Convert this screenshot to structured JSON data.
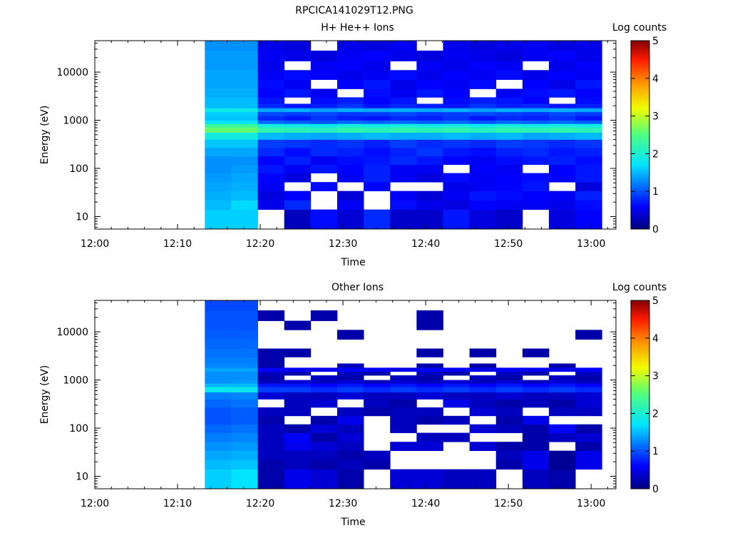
{
  "figure": {
    "title": "RPCICA141029T12.PNG"
  },
  "chart_data": [
    {
      "type": "heatmap",
      "title": "H+ He++ Ions",
      "xlabel": "Time",
      "ylabel": "Energy (eV)",
      "x_unit": "minutes past 12:00",
      "x_range": [
        0,
        63
      ],
      "x_ticks": [
        "12:00",
        "12:10",
        "12:20",
        "12:30",
        "12:40",
        "12:50",
        "13:00"
      ],
      "y_scale": "log",
      "y_range": [
        5.5,
        45000
      ],
      "y_ticks": [
        "10",
        "100",
        "1000",
        "10000"
      ],
      "colorbar": {
        "label": "Log counts",
        "range": [
          0,
          5
        ],
        "ticks": [
          "0",
          "1",
          "2",
          "3",
          "4",
          "5"
        ],
        "colormap": "rainbow"
      },
      "time_bins_min": [
        [
          13.3,
          16.5
        ],
        [
          16.5,
          19.7
        ],
        [
          19.7,
          22.9
        ],
        [
          22.9,
          26.1
        ],
        [
          26.1,
          29.3
        ],
        [
          29.3,
          32.5
        ],
        [
          32.5,
          35.7
        ],
        [
          35.7,
          38.9
        ],
        [
          38.9,
          42.1
        ],
        [
          42.1,
          45.3
        ],
        [
          45.3,
          48.5
        ],
        [
          48.5,
          51.7
        ],
        [
          51.7,
          54.9
        ],
        [
          54.9,
          58.1
        ],
        [
          58.1,
          61.3
        ]
      ],
      "energy_bins_eV": [
        5.5,
        9,
        14,
        22,
        34,
        52,
        80,
        120,
        180,
        270,
        400,
        560,
        720,
        850,
        1000,
        1250,
        1500,
        1800,
        2200,
        3000,
        4500,
        7000,
        11000,
        17000,
        28000,
        45000
      ],
      "log_counts": [
        [
          1.6,
          1.6,
          null,
          0.3,
          0.65,
          0.4,
          0.8,
          0.35,
          0.35,
          0.7,
          0.45,
          0.35,
          null,
          0.45,
          0.6
        ],
        [
          1.6,
          1.6,
          null,
          0.3,
          0.65,
          0.4,
          0.8,
          0.35,
          0.35,
          0.7,
          0.45,
          0.35,
          null,
          0.45,
          0.6
        ],
        [
          1.5,
          1.65,
          0.5,
          0.8,
          null,
          0.55,
          null,
          0.65,
          0.5,
          0.45,
          0.6,
          0.55,
          0.55,
          0.5,
          0.65
        ],
        [
          1.45,
          1.5,
          0.45,
          0.6,
          null,
          0.4,
          null,
          0.55,
          0.4,
          0.55,
          0.7,
          0.65,
          0.6,
          0.55,
          0.75
        ],
        [
          1.4,
          1.45,
          0.55,
          null,
          0.65,
          null,
          0.6,
          null,
          null,
          0.5,
          0.55,
          0.6,
          0.7,
          null,
          0.45
        ],
        [
          1.35,
          1.4,
          0.6,
          0.45,
          null,
          0.55,
          0.75,
          0.55,
          0.45,
          0.65,
          0.55,
          0.6,
          0.65,
          0.6,
          0.7
        ],
        [
          1.3,
          1.35,
          0.7,
          0.55,
          0.7,
          0.6,
          0.75,
          0.55,
          0.55,
          null,
          0.6,
          0.55,
          null,
          0.6,
          0.7
        ],
        [
          1.3,
          1.3,
          0.6,
          0.75,
          0.55,
          0.65,
          0.7,
          0.8,
          0.7,
          0.6,
          0.55,
          0.65,
          0.7,
          0.75,
          0.65
        ],
        [
          1.4,
          1.4,
          0.8,
          0.65,
          0.8,
          0.75,
          0.65,
          0.75,
          0.85,
          0.7,
          0.65,
          0.75,
          0.8,
          0.7,
          0.75
        ],
        [
          1.55,
          1.55,
          0.9,
          0.85,
          0.8,
          0.85,
          0.75,
          0.9,
          0.8,
          0.85,
          0.8,
          0.9,
          0.85,
          0.8,
          0.85
        ],
        [
          1.9,
          1.9,
          1.5,
          1.45,
          1.4,
          1.45,
          1.5,
          1.45,
          1.45,
          1.5,
          1.45,
          1.5,
          1.4,
          1.45,
          1.5
        ],
        [
          2.6,
          2.6,
          2.2,
          2.15,
          2.1,
          2.2,
          2.15,
          2.2,
          2.15,
          2.2,
          2.1,
          2.2,
          2.15,
          2.2,
          2.15
        ],
        [
          2.3,
          2.3,
          1.9,
          1.85,
          1.8,
          1.9,
          1.85,
          1.9,
          1.85,
          1.9,
          1.8,
          1.9,
          1.85,
          1.9,
          1.85
        ],
        [
          1.7,
          1.7,
          1.1,
          1.05,
          1.0,
          1.1,
          1.05,
          1.1,
          1.05,
          1.1,
          1.0,
          1.1,
          1.05,
          1.1,
          1.05
        ],
        [
          1.55,
          1.55,
          0.8,
          0.7,
          0.85,
          0.75,
          0.7,
          0.8,
          0.75,
          0.85,
          0.7,
          0.8,
          0.75,
          0.85,
          0.7
        ],
        [
          1.6,
          1.6,
          0.95,
          0.9,
          0.95,
          0.85,
          0.9,
          0.95,
          0.85,
          0.9,
          0.95,
          0.9,
          0.85,
          0.95,
          0.9
        ],
        [
          1.85,
          1.85,
          1.4,
          1.45,
          1.35,
          1.45,
          1.4,
          1.45,
          1.4,
          1.45,
          1.35,
          1.45,
          1.4,
          1.45,
          1.4
        ],
        [
          1.5,
          1.5,
          0.8,
          0.7,
          0.75,
          0.85,
          0.7,
          0.8,
          0.75,
          0.7,
          0.85,
          0.75,
          0.8,
          0.7,
          0.75
        ],
        [
          1.5,
          1.5,
          0.7,
          null,
          0.65,
          0.75,
          0.6,
          0.7,
          null,
          0.65,
          0.75,
          0.7,
          0.6,
          null,
          0.65
        ],
        [
          1.45,
          1.45,
          0.6,
          0.7,
          0.55,
          null,
          0.65,
          0.55,
          0.7,
          0.6,
          null,
          0.55,
          0.65,
          0.7,
          0.6
        ],
        [
          1.4,
          1.4,
          0.65,
          0.55,
          null,
          0.6,
          0.7,
          0.5,
          0.6,
          0.55,
          0.65,
          null,
          0.6,
          0.5,
          0.7
        ],
        [
          1.4,
          1.4,
          0.55,
          0.65,
          0.6,
          0.5,
          0.55,
          0.65,
          0.5,
          0.6,
          0.55,
          0.65,
          0.5,
          0.6,
          0.55
        ],
        [
          1.35,
          1.35,
          0.5,
          null,
          0.55,
          0.6,
          0.5,
          null,
          0.55,
          0.5,
          0.6,
          0.55,
          null,
          0.5,
          0.6
        ],
        [
          1.35,
          1.35,
          0.55,
          0.5,
          0.45,
          0.55,
          0.6,
          0.5,
          0.45,
          0.55,
          0.5,
          0.45,
          0.55,
          0.6,
          0.5
        ],
        [
          1.3,
          1.3,
          0.5,
          0.45,
          null,
          0.5,
          0.45,
          0.55,
          null,
          0.5,
          0.45,
          0.5,
          0.55,
          0.45,
          0.5
        ]
      ]
    },
    {
      "type": "heatmap",
      "title": "Other Ions",
      "xlabel": "Time",
      "ylabel": "Energy (eV)",
      "x_unit": "minutes past 12:00",
      "x_range": [
        0,
        63
      ],
      "x_ticks": [
        "12:00",
        "12:10",
        "12:20",
        "12:30",
        "12:40",
        "12:50",
        "13:00"
      ],
      "y_scale": "log",
      "y_range": [
        5.5,
        45000
      ],
      "y_ticks": [
        "10",
        "100",
        "1000",
        "10000"
      ],
      "colorbar": {
        "label": "Log counts",
        "range": [
          0,
          5
        ],
        "ticks": [
          "0",
          "1",
          "2",
          "3",
          "4",
          "5"
        ],
        "colormap": "rainbow"
      },
      "time_bins_min": [
        [
          13.3,
          16.5
        ],
        [
          16.5,
          19.7
        ],
        [
          19.7,
          22.9
        ],
        [
          22.9,
          26.1
        ],
        [
          26.1,
          29.3
        ],
        [
          29.3,
          32.5
        ],
        [
          32.5,
          35.7
        ],
        [
          35.7,
          38.9
        ],
        [
          38.9,
          42.1
        ],
        [
          42.1,
          45.3
        ],
        [
          45.3,
          48.5
        ],
        [
          48.5,
          51.7
        ],
        [
          51.7,
          54.9
        ],
        [
          54.9,
          58.1
        ],
        [
          58.1,
          61.3
        ]
      ],
      "energy_bins_eV": [
        5.5,
        9,
        14,
        22,
        34,
        52,
        80,
        120,
        180,
        270,
        400,
        560,
        720,
        850,
        1000,
        1250,
        1500,
        1800,
        2200,
        3000,
        4500,
        7000,
        11000,
        17000,
        28000,
        45000
      ],
      "log_counts": [
        [
          1.6,
          1.7,
          0.2,
          0.5,
          0.4,
          0.2,
          null,
          0.4,
          0.4,
          0.3,
          0.3,
          null,
          0.3,
          0.2,
          null
        ],
        [
          1.6,
          1.7,
          0.2,
          0.5,
          0.4,
          0.2,
          null,
          0.4,
          0.4,
          0.3,
          0.3,
          null,
          0.3,
          0.2,
          null
        ],
        [
          1.5,
          1.55,
          0.2,
          0.3,
          0.2,
          0.3,
          0.2,
          null,
          null,
          null,
          null,
          0.2,
          0.5,
          0.1,
          0.5
        ],
        [
          1.4,
          1.45,
          0.3,
          0.3,
          0.3,
          0.2,
          0.3,
          null,
          null,
          null,
          null,
          0.3,
          0.5,
          0.1,
          0.5
        ],
        [
          1.3,
          1.35,
          0.3,
          0.5,
          0.4,
          0.3,
          null,
          0.4,
          0.4,
          null,
          0.4,
          0.2,
          0.2,
          null,
          0.2
        ],
        [
          1.2,
          1.25,
          0.3,
          0.6,
          0.2,
          0.4,
          null,
          null,
          0.3,
          0.3,
          null,
          null,
          0.2,
          0.3,
          0.4
        ],
        [
          1.1,
          1.15,
          0.3,
          0.2,
          0.4,
          0.3,
          null,
          0.3,
          null,
          null,
          0.4,
          0.3,
          0.2,
          0.6,
          0.2
        ],
        [
          1.0,
          1.05,
          0.2,
          null,
          0.2,
          0.5,
          null,
          0.3,
          0.2,
          0.3,
          null,
          0.2,
          0.5,
          null,
          null
        ],
        [
          1.0,
          1.05,
          0.3,
          0.3,
          null,
          0.3,
          0.2,
          0.3,
          0.3,
          null,
          0.4,
          0.3,
          null,
          0.3,
          0.3
        ],
        [
          1.1,
          1.15,
          null,
          0.3,
          0.4,
          null,
          0.3,
          0.2,
          null,
          0.5,
          0.3,
          0.2,
          0.3,
          0.2,
          0.4
        ],
        [
          1.2,
          1.25,
          0.4,
          0.3,
          0.3,
          0.4,
          0.3,
          0.3,
          0.4,
          0.3,
          0.3,
          0.4,
          0.3,
          0.3,
          0.4
        ],
        [
          1.8,
          1.8,
          0.9,
          0.9,
          0.8,
          0.9,
          0.8,
          0.9,
          0.8,
          0.9,
          0.8,
          0.9,
          0.8,
          0.9,
          0.8
        ],
        [
          1.5,
          1.5,
          0.7,
          0.7,
          0.6,
          0.7,
          0.6,
          0.7,
          0.6,
          0.7,
          0.6,
          0.7,
          0.6,
          0.7,
          0.6
        ],
        [
          1.3,
          1.35,
          0.3,
          0.4,
          0.3,
          0.4,
          0.3,
          0.4,
          0.3,
          0.4,
          0.3,
          0.4,
          0.3,
          0.4,
          0.3
        ],
        [
          1.3,
          1.3,
          0.2,
          null,
          0.3,
          0.2,
          null,
          0.3,
          0.2,
          null,
          0.3,
          0.2,
          null,
          0.3,
          0.2
        ],
        [
          1.3,
          1.3,
          0.3,
          0.2,
          null,
          0.3,
          0.2,
          null,
          0.3,
          0.2,
          null,
          0.3,
          0.2,
          null,
          0.3
        ],
        [
          1.4,
          1.4,
          0.6,
          0.6,
          0.5,
          0.6,
          0.6,
          0.5,
          0.6,
          0.6,
          0.5,
          0.6,
          0.6,
          0.5,
          0.6
        ],
        [
          1.25,
          1.25,
          0.2,
          null,
          null,
          0.3,
          null,
          null,
          0.2,
          null,
          0.2,
          null,
          null,
          0.2,
          null
        ],
        [
          1.2,
          1.2,
          0.2,
          null,
          null,
          null,
          null,
          null,
          null,
          null,
          null,
          null,
          null,
          null,
          null
        ],
        [
          1.15,
          1.15,
          0.2,
          0.2,
          null,
          null,
          null,
          null,
          0.2,
          null,
          0.2,
          null,
          0.2,
          null,
          null
        ],
        [
          1.1,
          1.1,
          null,
          null,
          null,
          null,
          null,
          null,
          null,
          null,
          null,
          null,
          null,
          null,
          null
        ],
        [
          1.05,
          1.05,
          null,
          null,
          null,
          0.2,
          null,
          null,
          null,
          null,
          null,
          null,
          null,
          null,
          0.2
        ],
        [
          1.0,
          1.0,
          null,
          0.2,
          null,
          null,
          null,
          null,
          0.2,
          null,
          null,
          null,
          null,
          null,
          null
        ],
        [
          1.0,
          1.0,
          0.2,
          null,
          0.2,
          null,
          null,
          null,
          0.2,
          null,
          null,
          null,
          null,
          null,
          null
        ],
        [
          0.95,
          0.95,
          null,
          null,
          null,
          null,
          null,
          null,
          null,
          null,
          null,
          null,
          null,
          null,
          null
        ]
      ]
    }
  ]
}
